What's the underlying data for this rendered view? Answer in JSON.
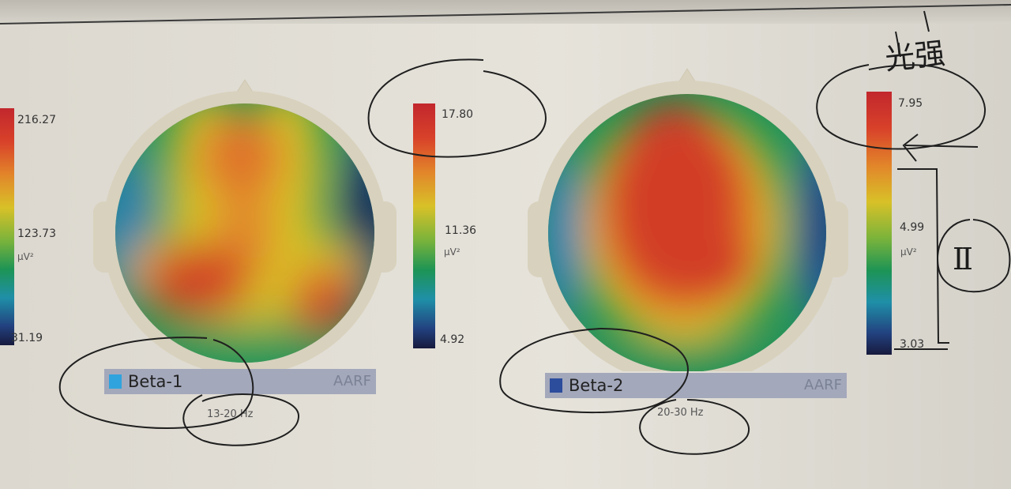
{
  "colors": {
    "paper": "#e3e0d8",
    "band_bar": "#a3a8bb",
    "beta1_swatch": "#2fa3dd",
    "beta2_swatch": "#2c4c9c",
    "colormap": [
      "#c2272d",
      "#e2852a",
      "#d8c128",
      "#1d9455",
      "#1f8fa8",
      "#171a3d"
    ]
  },
  "left_colorbar": {
    "max": "216.27",
    "mid": "123.73",
    "unit": "µV²",
    "min": "31.19"
  },
  "maps": [
    {
      "band": "Beta-1",
      "method": "AARF",
      "range": "13-20 Hz",
      "colorbar": {
        "max": "17.80",
        "mid": "11.36",
        "unit": "µV²",
        "min": "4.92"
      }
    },
    {
      "band": "Beta-2",
      "method": "AARF",
      "range": "20-30 Hz",
      "colorbar": {
        "max": "7.95",
        "mid": "4.99",
        "unit": "µV²",
        "min": "3.03"
      }
    }
  ],
  "annotations": {
    "note_top": "光强",
    "note_roman": "II"
  }
}
